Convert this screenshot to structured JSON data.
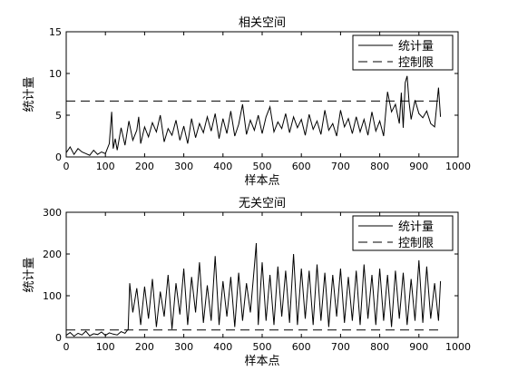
{
  "chart_data": [
    {
      "type": "line",
      "title": "相关空间",
      "xlabel": "样本点",
      "ylabel": "统计量",
      "xlim": [
        0,
        1000
      ],
      "ylim": [
        0,
        15
      ],
      "xticks": [
        0,
        100,
        200,
        300,
        400,
        500,
        600,
        700,
        800,
        900,
        1000
      ],
      "yticks": [
        0,
        5,
        10,
        15
      ],
      "grid": false,
      "legend_position": "top-right",
      "series": [
        {
          "name": "统计量",
          "style": "solid",
          "color": "#000000",
          "x": [
            0,
            10,
            20,
            30,
            40,
            50,
            60,
            70,
            80,
            90,
            100,
            110,
            116,
            120,
            125,
            130,
            140,
            150,
            160,
            170,
            180,
            185,
            190,
            200,
            210,
            220,
            230,
            240,
            250,
            260,
            270,
            280,
            290,
            300,
            310,
            320,
            330,
            340,
            350,
            360,
            370,
            380,
            390,
            400,
            410,
            420,
            430,
            440,
            450,
            460,
            470,
            480,
            490,
            500,
            510,
            520,
            530,
            540,
            550,
            560,
            570,
            580,
            590,
            600,
            610,
            620,
            630,
            640,
            650,
            660,
            670,
            680,
            690,
            700,
            710,
            720,
            730,
            740,
            750,
            760,
            770,
            780,
            790,
            800,
            810,
            820,
            830,
            840,
            850,
            855,
            860,
            865,
            870,
            875,
            880,
            890,
            900,
            910,
            920,
            930,
            940,
            950,
            955
          ],
          "values": [
            0.5,
            1.2,
            0.3,
            1.0,
            0.6,
            0.4,
            0.2,
            0.8,
            0.3,
            0.6,
            0.4,
            1.6,
            5.4,
            1.0,
            2.2,
            0.8,
            3.5,
            1.4,
            4.3,
            2.0,
            3.2,
            4.8,
            1.6,
            3.6,
            2.4,
            4.1,
            3.0,
            5.0,
            1.8,
            3.4,
            2.6,
            4.4,
            2.0,
            3.7,
            1.6,
            4.6,
            2.3,
            4.0,
            2.9,
            4.8,
            3.1,
            5.2,
            2.2,
            4.6,
            2.8,
            5.5,
            2.5,
            3.9,
            6.3,
            2.7,
            4.4,
            3.2,
            5.0,
            2.8,
            4.8,
            6.0,
            3.0,
            4.2,
            3.4,
            5.2,
            2.9,
            4.8,
            3.5,
            4.5,
            2.6,
            5.1,
            3.3,
            4.3,
            2.7,
            5.6,
            3.2,
            4.0,
            2.5,
            5.6,
            3.6,
            4.6,
            2.8,
            4.8,
            3.0,
            4.5,
            2.6,
            5.4,
            3.1,
            4.3,
            2.5,
            7.8,
            5.4,
            6.3,
            4.0,
            7.7,
            3.5,
            8.9,
            9.7,
            6.5,
            4.5,
            6.8,
            5.2,
            4.7,
            5.5,
            4.0,
            3.6,
            8.3,
            4.8
          ]
        },
        {
          "name": "控制限",
          "style": "dashed",
          "color": "#000000",
          "x": [
            0,
            960
          ],
          "values": [
            6.7,
            6.7
          ]
        }
      ]
    },
    {
      "type": "line",
      "title": "无关空间",
      "xlabel": "样本点",
      "ylabel": "统计量",
      "xlim": [
        0,
        1000
      ],
      "ylim": [
        0,
        300
      ],
      "xticks": [
        0,
        100,
        200,
        300,
        400,
        500,
        600,
        700,
        800,
        900,
        1000
      ],
      "yticks": [
        0,
        100,
        200,
        300
      ],
      "grid": false,
      "legend_position": "top-right",
      "series": [
        {
          "name": "统计量",
          "style": "solid",
          "color": "#000000",
          "x": [
            0,
            10,
            20,
            30,
            40,
            50,
            60,
            70,
            80,
            90,
            100,
            110,
            120,
            130,
            140,
            150,
            158,
            162,
            170,
            180,
            190,
            200,
            210,
            220,
            230,
            240,
            250,
            260,
            270,
            280,
            290,
            300,
            310,
            320,
            330,
            340,
            350,
            360,
            370,
            380,
            390,
            400,
            410,
            420,
            430,
            440,
            450,
            460,
            470,
            480,
            485,
            490,
            500,
            510,
            520,
            530,
            540,
            550,
            560,
            570,
            580,
            590,
            600,
            610,
            620,
            630,
            640,
            650,
            660,
            670,
            680,
            690,
            700,
            710,
            720,
            730,
            740,
            750,
            760,
            770,
            780,
            790,
            800,
            810,
            820,
            830,
            840,
            850,
            860,
            870,
            880,
            890,
            900,
            910,
            920,
            930,
            940,
            950,
            955
          ],
          "values": [
            5,
            12,
            3,
            10,
            6,
            15,
            4,
            9,
            7,
            13,
            5,
            11,
            8,
            6,
            14,
            10,
            20,
            130,
            60,
            118,
            30,
            122,
            45,
            140,
            25,
            110,
            50,
            150,
            20,
            130,
            55,
            165,
            30,
            145,
            60,
            180,
            35,
            125,
            40,
            195,
            30,
            135,
            50,
            145,
            25,
            155,
            40,
            130,
            60,
            170,
            226,
            30,
            180,
            40,
            150,
            30,
            170,
            50,
            160,
            35,
            200,
            30,
            165,
            45,
            160,
            30,
            175,
            40,
            155,
            25,
            150,
            50,
            165,
            35,
            145,
            40,
            160,
            30,
            175,
            45,
            150,
            30,
            165,
            40,
            150,
            25,
            160,
            45,
            155,
            30,
            140,
            40,
            185,
            35,
            170,
            45,
            130,
            40,
            135
          ]
        },
        {
          "name": "控制限",
          "style": "dashed",
          "color": "#000000",
          "x": [
            0,
            960
          ],
          "values": [
            18,
            18
          ]
        }
      ]
    }
  ]
}
